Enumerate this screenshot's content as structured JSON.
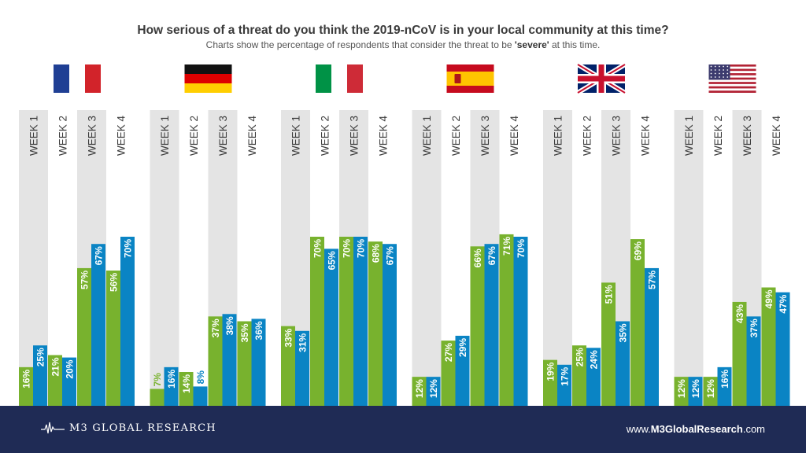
{
  "header": {
    "title": "How serious of a threat do you think the 2019-nCoV is in your local community at this time?",
    "subtitle_prefix": "Charts show the percentage of respondents that consider the threat to be ",
    "subtitle_emphasis": "'severe'",
    "subtitle_suffix": " at this time."
  },
  "footer": {
    "logo_text": "M3 GLOBAL RESEARCH",
    "url_prefix": "www.",
    "url_brand": "M3GlobalResearch",
    "url_suffix": ".com",
    "background": "#1f2b55"
  },
  "colors": {
    "green": "#78b22e",
    "blue": "#0a84c4",
    "column_bg": "#e4e4e4",
    "text_dark": "#3a3a3a"
  },
  "chart_data": {
    "type": "bar",
    "categories": [
      "WEEK 1",
      "WEEK 2",
      "WEEK 3",
      "WEEK 4"
    ],
    "ylim": [
      0,
      100
    ],
    "groups": [
      {
        "flag": "france-flag",
        "series": [
          {
            "values": [
              16,
              21,
              57,
              56
            ]
          },
          {
            "values": [
              25,
              20,
              67,
              70
            ]
          }
        ],
        "labels": [
          [
            "16%",
            "21%",
            "57%",
            "56%"
          ],
          [
            "25%",
            "20%",
            "67%",
            "70%"
          ]
        ]
      },
      {
        "flag": "germany-flag",
        "series": [
          {
            "values": [
              7,
              14,
              37,
              35
            ]
          },
          {
            "values": [
              16,
              8,
              38,
              36
            ]
          }
        ],
        "labels": [
          [
            "7%",
            "14%",
            "37%",
            "35%"
          ],
          [
            "16%",
            "8%",
            "38%",
            "36%"
          ]
        ]
      },
      {
        "flag": "italy-flag",
        "series": [
          {
            "values": [
              33,
              70,
              70,
              68
            ]
          },
          {
            "values": [
              31,
              65,
              70,
              67
            ]
          }
        ],
        "labels": [
          [
            "33%",
            "70%",
            "70%",
            "68%"
          ],
          [
            "31%",
            "65%",
            "70%",
            "67%"
          ]
        ]
      },
      {
        "flag": "spain-flag",
        "series": [
          {
            "values": [
              12,
              27,
              66,
              71
            ]
          },
          {
            "values": [
              12,
              29,
              67,
              70
            ]
          }
        ],
        "labels": [
          [
            "12%",
            "27%",
            "66%",
            "71%"
          ],
          [
            "12%",
            "29%",
            "67%",
            "70%"
          ]
        ]
      },
      {
        "flag": "uk-flag",
        "series": [
          {
            "values": [
              19,
              25,
              51,
              69
            ]
          },
          {
            "values": [
              17,
              24,
              35,
              57
            ]
          }
        ],
        "labels": [
          [
            "19%",
            "25%",
            "51%",
            "69%"
          ],
          [
            "17%",
            "24%",
            "35%",
            "57%"
          ]
        ]
      },
      {
        "flag": "usa-flag",
        "series": [
          {
            "values": [
              12,
              12,
              43,
              49
            ]
          },
          {
            "values": [
              12,
              16,
              37,
              47
            ]
          }
        ],
        "labels": [
          [
            "12%",
            "12%",
            "43%",
            "49%"
          ],
          [
            "12%",
            "16%",
            "37%",
            "47%"
          ]
        ]
      }
    ]
  }
}
